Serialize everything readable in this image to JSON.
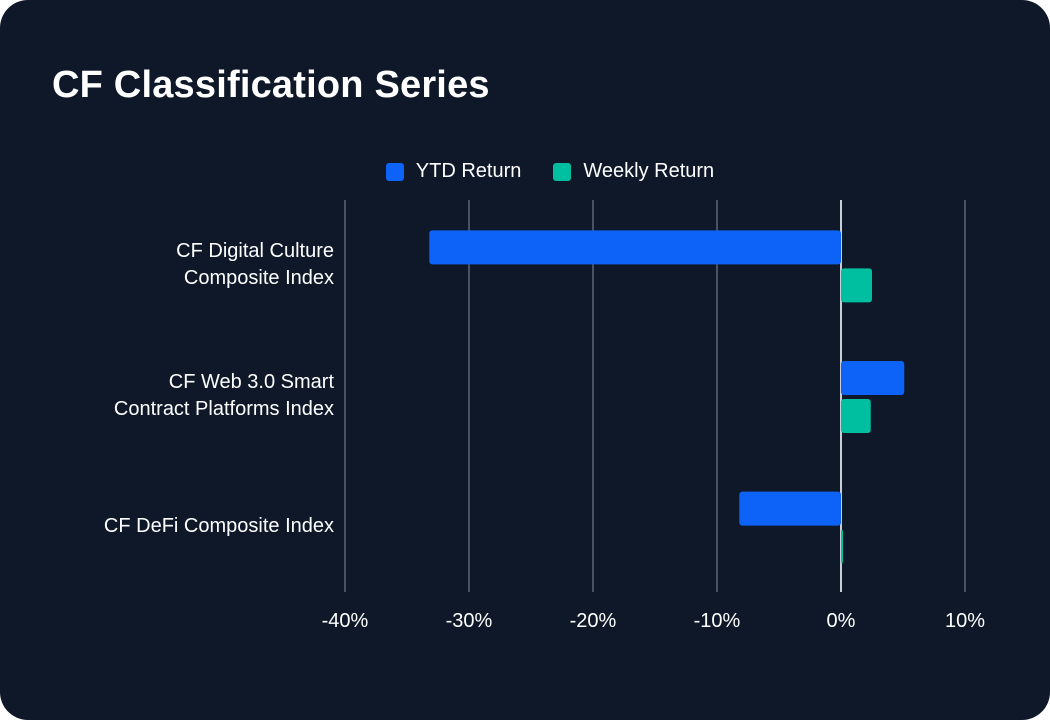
{
  "chart_data": {
    "type": "bar",
    "orientation": "horizontal",
    "title": "CF Classification Series",
    "categories": [
      [
        "CF Digital Culture",
        "Composite Index"
      ],
      [
        "CF Web 3.0 Smart",
        "Contract Platforms Index"
      ],
      [
        "CF DeFi Composite Index"
      ]
    ],
    "series": [
      {
        "name": "YTD Return",
        "color": "#0d63f8",
        "values": [
          -33.2,
          5.1,
          -8.2
        ]
      },
      {
        "name": "Weekly Return",
        "color": "#00bfa0",
        "values": [
          2.5,
          2.4,
          0.1
        ]
      }
    ],
    "xlim": [
      -40,
      10
    ],
    "xticks": [
      -40,
      -30,
      -20,
      -10,
      0,
      10
    ],
    "xtick_labels": [
      "-40%",
      "-30%",
      "-20%",
      "-10%",
      "0%",
      "10%"
    ],
    "grid": true,
    "legend_position": "top-center"
  }
}
